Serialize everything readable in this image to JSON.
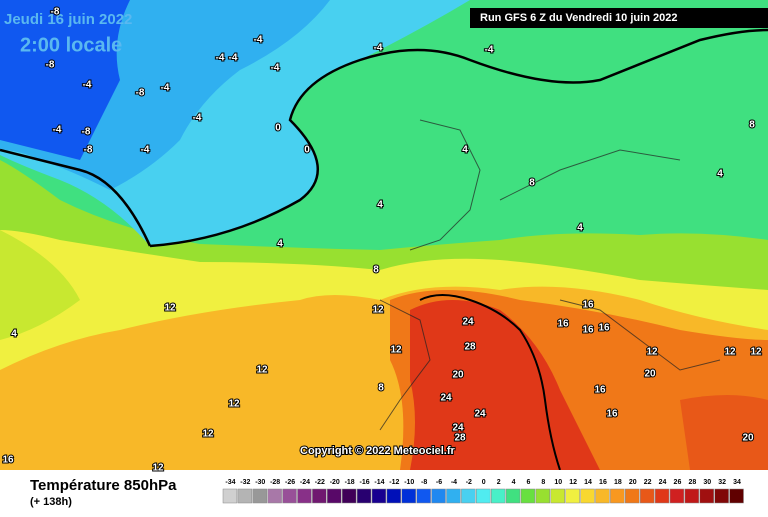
{
  "header": {
    "date": "Jeudi 16 juin 2022",
    "time": "2:00 locale",
    "run": "Run GFS 6 Z du Vendredi 10 juin 2022"
  },
  "copyright": "Copyright © 2022 Meteociel.fr",
  "footer": {
    "title": "Température 850hPa",
    "subtitle": "(+ 138h)"
  },
  "map_labels": [
    -8,
    -4,
    -4,
    -4,
    -4,
    -4,
    -4,
    -8,
    -4,
    -8,
    -4,
    -4,
    -8,
    -8,
    -4,
    -4,
    0,
    0,
    4,
    4,
    4,
    8,
    8,
    4,
    4,
    8,
    12,
    12,
    12,
    12,
    12,
    12,
    16,
    4,
    12,
    8,
    24,
    28,
    20,
    24,
    24,
    24,
    28,
    16,
    16,
    16,
    16,
    12,
    20,
    16,
    16,
    20,
    12,
    12
  ],
  "scale": {
    "values": [
      -34,
      -32,
      -30,
      -28,
      -26,
      -24,
      -22,
      -20,
      -18,
      -16,
      -14,
      -12,
      -10,
      -8,
      -6,
      -4,
      -2,
      0,
      2,
      4,
      6,
      8,
      10,
      12,
      14,
      16,
      18,
      20,
      22,
      24,
      26,
      28,
      30,
      32,
      34
    ],
    "colors": [
      "#d0d0d0",
      "#b4b4b4",
      "#989898",
      "#a878a8",
      "#985098",
      "#883088",
      "#701870",
      "#580868",
      "#400058",
      "#280070",
      "#180090",
      "#0010b8",
      "#0030d8",
      "#1058f0",
      "#2088f0",
      "#30b0f0",
      "#48d0f0",
      "#50ecf0",
      "#48f0c8",
      "#40e080",
      "#68e040",
      "#98e030",
      "#c8e830",
      "#f0f040",
      "#f8d830",
      "#f8b828",
      "#f89820",
      "#f07818",
      "#e85818",
      "#e03818",
      "#d02020",
      "#c01818",
      "#a01010",
      "#800808",
      "#600000"
    ]
  }
}
